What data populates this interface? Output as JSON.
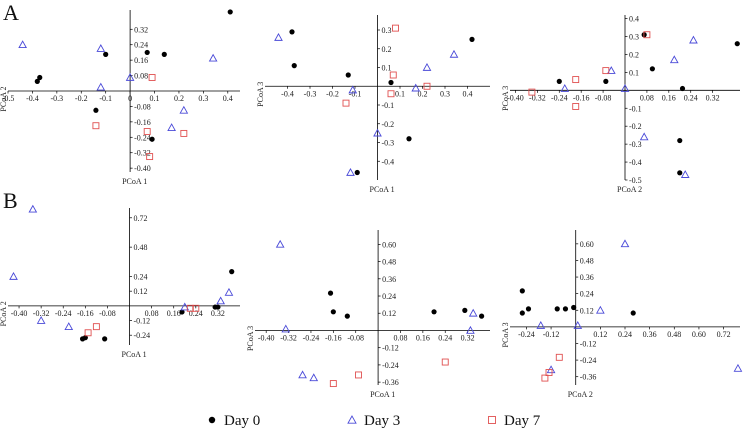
{
  "figure": {
    "panel_letters": [
      "A",
      "B"
    ],
    "legend": [
      {
        "label": "Day 0",
        "marker": "filled-circle",
        "color": "#000000"
      },
      {
        "label": "Day 3",
        "marker": "open-triangle",
        "color": "#4a4ad8"
      },
      {
        "label": "Day 7",
        "marker": "open-square",
        "color": "#e05050"
      }
    ]
  },
  "chart_data": [
    {
      "id": "A1",
      "type": "scatter",
      "xlabel": "PCoA 1",
      "ylabel": "PCoA 2",
      "xlim": [
        -0.5,
        0.45
      ],
      "ylim": [
        -0.42,
        0.42
      ],
      "xticks": [
        "-0.5",
        "-0.4",
        "-0.3",
        "-0.2",
        "-0.1",
        "0",
        "0.1",
        "0.2",
        "0.3",
        "0.4"
      ],
      "xtick_values": [
        -0.5,
        -0.4,
        -0.3,
        -0.2,
        -0.1,
        0,
        0.1,
        0.2,
        0.3,
        0.4
      ],
      "yticks": [
        "0.32",
        "0.24",
        "0.16",
        "0.08",
        "-0.08",
        "-0.16",
        "-0.24",
        "-0.32",
        "-0.40"
      ],
      "ytick_values": [
        0.32,
        0.24,
        0.16,
        0.08,
        -0.08,
        -0.16,
        -0.24,
        -0.32,
        -0.4
      ],
      "series": [
        {
          "name": "Day 0",
          "points": [
            [
              -0.38,
              0.05
            ],
            [
              -0.37,
              0.07
            ],
            [
              -0.14,
              -0.1
            ],
            [
              -0.1,
              0.19
            ],
            [
              0.07,
              0.2
            ],
            [
              0.14,
              0.19
            ],
            [
              0.41,
              0.41
            ],
            [
              0.09,
              -0.25
            ]
          ]
        },
        {
          "name": "Day 3",
          "points": [
            [
              -0.44,
              0.24
            ],
            [
              -0.12,
              0.22
            ],
            [
              0.0,
              0.07
            ],
            [
              0.17,
              -0.19
            ],
            [
              0.22,
              -0.1
            ],
            [
              0.34,
              0.17
            ],
            [
              -0.12,
              0.02
            ]
          ]
        },
        {
          "name": "Day 7",
          "points": [
            [
              -0.14,
              -0.18
            ],
            [
              0.09,
              0.07
            ],
            [
              0.07,
              -0.21
            ],
            [
              0.08,
              -0.34
            ],
            [
              0.22,
              -0.22
            ]
          ]
        }
      ]
    },
    {
      "id": "A2",
      "type": "scatter",
      "xlabel": "PCoA 1",
      "ylabel": "PCoA 3",
      "xlim": [
        -0.5,
        0.5
      ],
      "ylim": [
        -0.5,
        0.38
      ],
      "xticks": [
        "-0.4",
        "-0.3",
        "-0.2",
        "-0.1",
        "0.1",
        "0.2",
        "0.3",
        "0.4"
      ],
      "xtick_values": [
        -0.4,
        -0.3,
        -0.2,
        -0.1,
        0.1,
        0.2,
        0.3,
        0.4
      ],
      "yticks": [
        "0.3",
        "0.2",
        "0.1",
        "-0.1",
        "-0.2",
        "-0.3",
        "-0.4"
      ],
      "ytick_values": [
        0.3,
        0.2,
        0.1,
        -0.1,
        -0.2,
        -0.3,
        -0.4
      ],
      "series": [
        {
          "name": "Day 0",
          "points": [
            [
              -0.38,
              0.29
            ],
            [
              -0.37,
              0.11
            ],
            [
              -0.13,
              0.06
            ],
            [
              -0.09,
              -0.46
            ],
            [
              0.06,
              0.02
            ],
            [
              0.14,
              -0.28
            ],
            [
              0.42,
              0.25
            ]
          ]
        },
        {
          "name": "Day 3",
          "points": [
            [
              -0.44,
              0.26
            ],
            [
              -0.12,
              -0.46
            ],
            [
              0.0,
              -0.25
            ],
            [
              0.17,
              -0.01
            ],
            [
              0.22,
              0.1
            ],
            [
              0.34,
              0.17
            ],
            [
              -0.11,
              -0.02
            ]
          ]
        },
        {
          "name": "Day 7",
          "points": [
            [
              -0.14,
              -0.09
            ],
            [
              0.08,
              0.31
            ],
            [
              0.07,
              0.06
            ],
            [
              0.06,
              -0.04
            ],
            [
              0.22,
              0.0
            ]
          ]
        }
      ]
    },
    {
      "id": "A3",
      "type": "scatter",
      "xlabel": "PCoA 2",
      "ylabel": "PCoA 3",
      "xlim": [
        -0.42,
        0.42
      ],
      "ylim": [
        -0.5,
        0.42
      ],
      "xticks": [
        "-0.40",
        "-0.32",
        "-0.24",
        "-0.16",
        "-0.08",
        "0.08",
        "0.16",
        "0.24",
        "0.32"
      ],
      "xtick_values": [
        -0.4,
        -0.32,
        -0.24,
        -0.16,
        -0.08,
        0.08,
        0.16,
        0.24,
        0.32
      ],
      "yticks": [
        "0.4",
        "0.3",
        "0.2",
        "0.1",
        "-0.1",
        "-0.2",
        "-0.3",
        "-0.4",
        "-0.5"
      ],
      "ytick_values": [
        0.4,
        0.3,
        0.2,
        0.1,
        -0.1,
        -0.2,
        -0.3,
        -0.4,
        -0.5
      ],
      "series": [
        {
          "name": "Day 0",
          "points": [
            [
              -0.24,
              0.05
            ],
            [
              -0.07,
              0.05
            ],
            [
              0.07,
              0.31
            ],
            [
              0.1,
              0.12
            ],
            [
              0.2,
              -0.28
            ],
            [
              0.2,
              -0.46
            ],
            [
              0.21,
              0.01
            ],
            [
              0.41,
              0.26
            ]
          ]
        },
        {
          "name": "Day 3",
          "points": [
            [
              -0.22,
              0.01
            ],
            [
              0.0,
              0.01
            ],
            [
              0.07,
              -0.26
            ],
            [
              0.18,
              0.17
            ],
            [
              0.22,
              -0.47
            ],
            [
              0.25,
              0.28
            ],
            [
              -0.05,
              0.11
            ]
          ]
        },
        {
          "name": "Day 7",
          "points": [
            [
              -0.18,
              0.06
            ],
            [
              -0.07,
              0.11
            ],
            [
              -0.18,
              -0.09
            ],
            [
              0.08,
              0.31
            ],
            [
              -0.34,
              -0.01
            ]
          ]
        }
      ]
    },
    {
      "id": "B1",
      "type": "scatter",
      "xlabel": "PCoA 1",
      "ylabel": "PCoA 2",
      "xlim": [
        -0.44,
        0.4
      ],
      "ylim": [
        -0.32,
        0.8
      ],
      "xticks": [
        "-0.40",
        "-0.32",
        "-0.24",
        "-0.16",
        "-0.08",
        "0.08",
        "0.16",
        "0.24",
        "0.32"
      ],
      "xtick_values": [
        -0.4,
        -0.32,
        -0.24,
        -0.16,
        -0.08,
        0.08,
        0.16,
        0.24,
        0.32
      ],
      "yticks": [
        "0.72",
        "0.48",
        "0.24",
        "0.12",
        "-0.12",
        "-0.24"
      ],
      "ytick_values": [
        0.72,
        0.48,
        0.24,
        0.12,
        -0.12,
        -0.24
      ],
      "series": [
        {
          "name": "Day 0",
          "points": [
            [
              -0.17,
              -0.27
            ],
            [
              -0.16,
              -0.26
            ],
            [
              -0.09,
              -0.27
            ],
            [
              0.19,
              -0.05
            ],
            [
              0.31,
              -0.01
            ],
            [
              0.32,
              -0.01
            ],
            [
              0.37,
              0.28
            ]
          ]
        },
        {
          "name": "Day 3",
          "points": [
            [
              -0.42,
              0.24
            ],
            [
              -0.35,
              0.79
            ],
            [
              -0.32,
              -0.12
            ],
            [
              -0.22,
              -0.17
            ],
            [
              0.2,
              -0.01
            ],
            [
              0.33,
              0.04
            ],
            [
              0.36,
              0.11
            ]
          ]
        },
        {
          "name": "Day 7",
          "points": [
            [
              -0.15,
              -0.22
            ],
            [
              -0.12,
              -0.17
            ],
            [
              0.22,
              -0.02
            ],
            [
              0.24,
              -0.02
            ]
          ]
        }
      ]
    },
    {
      "id": "B2",
      "type": "scatter",
      "xlabel": "PCoA 1",
      "ylabel": "PCoA 3",
      "xlim": [
        -0.44,
        0.4
      ],
      "ylim": [
        -0.38,
        0.7
      ],
      "xticks": [
        "-0.40",
        "-0.32",
        "-0.24",
        "-0.16",
        "-0.08",
        "0.08",
        "0.16",
        "0.24",
        "0.32"
      ],
      "xtick_values": [
        -0.4,
        -0.32,
        -0.24,
        -0.16,
        -0.08,
        0.08,
        0.16,
        0.24,
        0.32
      ],
      "yticks": [
        "0.60",
        "0.48",
        "0.36",
        "0.24",
        "0.12",
        "-0.12",
        "-0.24",
        "-0.36"
      ],
      "ytick_values": [
        0.6,
        0.48,
        0.36,
        0.24,
        0.12,
        -0.12,
        -0.24,
        -0.36
      ],
      "series": [
        {
          "name": "Day 0",
          "points": [
            [
              -0.17,
              0.26
            ],
            [
              -0.16,
              0.13
            ],
            [
              -0.11,
              0.1
            ],
            [
              0.2,
              0.13
            ],
            [
              0.31,
              0.14
            ],
            [
              0.37,
              0.1
            ]
          ]
        },
        {
          "name": "Day 3",
          "points": [
            [
              -0.35,
              0.6
            ],
            [
              -0.33,
              0.01
            ],
            [
              -0.27,
              -0.31
            ],
            [
              -0.23,
              -0.33
            ],
            [
              0.33,
              0.0
            ],
            [
              0.34,
              0.12
            ]
          ]
        },
        {
          "name": "Day 7",
          "points": [
            [
              -0.16,
              -0.37
            ],
            [
              -0.07,
              -0.31
            ],
            [
              0.24,
              -0.22
            ]
          ]
        }
      ]
    },
    {
      "id": "B3",
      "type": "scatter",
      "xlabel": "PCoA 2",
      "ylabel": "PCoA 3",
      "xlim": [
        -0.32,
        0.8
      ],
      "ylim": [
        -0.42,
        0.7
      ],
      "xticks": [
        "-0.24",
        "-0.12",
        "0.12",
        "0.24",
        "0.36",
        "0.48",
        "0.60",
        "0.72"
      ],
      "xtick_values": [
        -0.24,
        -0.12,
        0.12,
        0.24,
        0.36,
        0.48,
        0.6,
        0.72
      ],
      "yticks": [
        "0.60",
        "0.48",
        "0.36",
        "0.24",
        "0.12",
        "-0.12",
        "-0.24",
        "-0.36"
      ],
      "ytick_values": [
        0.6,
        0.48,
        0.36,
        0.24,
        0.12,
        -0.12,
        -0.24,
        -0.36
      ],
      "series": [
        {
          "name": "Day 0",
          "points": [
            [
              -0.26,
              0.26
            ],
            [
              -0.26,
              0.1
            ],
            [
              -0.23,
              0.13
            ],
            [
              -0.09,
              0.13
            ],
            [
              -0.01,
              0.14
            ],
            [
              -0.05,
              0.13
            ],
            [
              0.28,
              0.1
            ]
          ]
        },
        {
          "name": "Day 3",
          "points": [
            [
              0.24,
              0.6
            ],
            [
              -0.12,
              -0.31
            ],
            [
              0.12,
              0.12
            ],
            [
              -0.17,
              0.01
            ],
            [
              0.79,
              -0.3
            ],
            [
              0.01,
              0.01
            ]
          ]
        },
        {
          "name": "Day 7",
          "points": [
            [
              -0.15,
              -0.37
            ],
            [
              -0.13,
              -0.33
            ],
            [
              -0.08,
              -0.22
            ]
          ]
        }
      ]
    }
  ]
}
